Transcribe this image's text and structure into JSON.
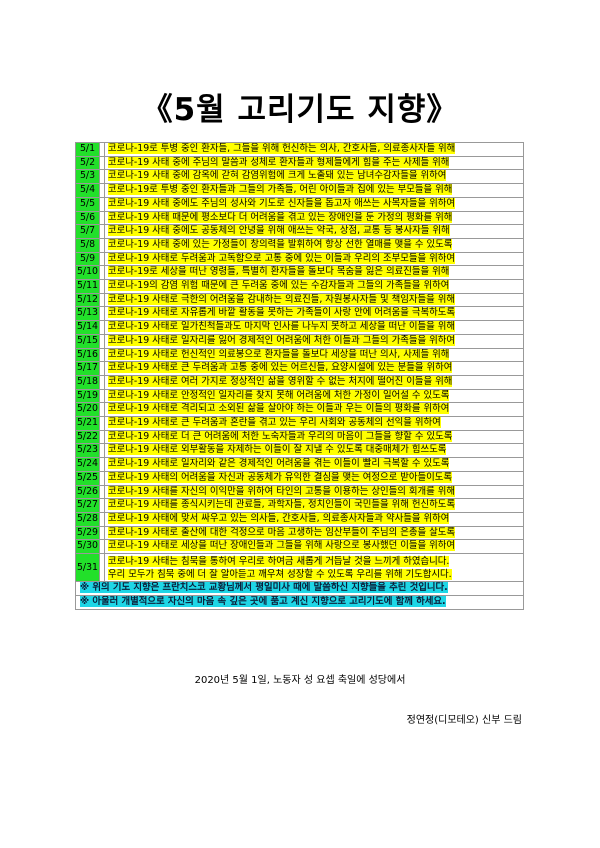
{
  "title": "《5월 고리기도 지향》",
  "colors": {
    "date_cell": "#22e02a",
    "highlight": "#ffff00",
    "note_highlight": "#1fd6e6"
  },
  "rows": [
    {
      "date": "5/1",
      "text": "코로나-19로 투병 중인 환자들, 그들을 위해 헌신하는 의사, 간호사들, 의료종사자들 위해"
    },
    {
      "date": "5/2",
      "text": "코로나-19 사태 중에 주님의 말씀과 성체로 환자들과 형제들에게 힘을 주는 사제들 위해"
    },
    {
      "date": "5/3",
      "text": "코로나-19 사태 중에 감옥에 갇혀 감염위험에 크게 노출돼 있는 남녀수감자들을 위하여"
    },
    {
      "date": "5/4",
      "text": "코로나-19로 투병 중인 환자들과 그들의 가족들, 어린 아이들과 집에 있는 부모들을 위해"
    },
    {
      "date": "5/5",
      "text": "코로나-19 사태 중에도 주님의 성사와 기도로 신자들을 돕고자 애쓰는 사목자들을 위하여"
    },
    {
      "date": "5/6",
      "text": "코로나-19 사태 때문에 평소보다 더 어려움을 겪고 있는 장애인을 둔 가정의 평화를 위해"
    },
    {
      "date": "5/7",
      "text": "코로나-19 사태 중에도 공동체의 안녕을 위해 애쓰는 약국, 상점, 교통 등 봉사자들 위해"
    },
    {
      "date": "5/8",
      "text": "코로나-19 사태 중에 있는 가정들이 창의력을 발휘하여 항상 선한 열매를 맺을 수 있도록"
    },
    {
      "date": "5/9",
      "text": "코로나-19 사태로 두려움과 고독함으로 고통 중에 있는 이들과 우리의 조부모들을 위하여"
    },
    {
      "date": "5/10",
      "text": "코로나-19로 세상을 떠난 영령들, 특별히 환자들을 돌보다 목숨을 잃은 의료진들을 위해"
    },
    {
      "date": "5/11",
      "text": "코로나-19의 감염 위험 때문에 큰 두려움 중에 있는 수감자들과 그들의 가족들을 위하여"
    },
    {
      "date": "5/12",
      "text": "코로나-19 사태로 극한의 어려움을 감내하는 의료진들, 자원봉사자들 및 책임자들을 위해"
    },
    {
      "date": "5/13",
      "text": "코로나-19 사태로 자유롭게 바깥 활동을 못하는 가족들이 사랑 안에 어려움을 극복하도록"
    },
    {
      "date": "5/14",
      "text": "코로나-19 사태로 일가친척들과도 마지막 인사를 나누지 못하고 세상을 떠난 이들을 위해"
    },
    {
      "date": "5/15",
      "text": "코로나-19 사태로 일자리를 잃어 경제적인 어려움에 처한 이들과 그들의 가족들을 위하여"
    },
    {
      "date": "5/16",
      "text": "코로나-19 사태로 헌신적인 의료봉으로 환자들을 돌보다 세상을 떠난 의사, 사제들 위해"
    },
    {
      "date": "5/17",
      "text": "코로나-19 사태로 큰 두려움과 고통 중에 있는 어르신들, 요양시설에 있는 분들을 위하여"
    },
    {
      "date": "5/18",
      "text": "코로나-19 사태로 여러 가지로 정상적인 삶을 영위할 수 없는 처지에 떨어진 이들을 위해"
    },
    {
      "date": "5/19",
      "text": "코로나-19 사태로 안정적인 일자리를 찾지 못해 어려움에 처한 가정이 일어설 수 있도록"
    },
    {
      "date": "5/20",
      "text": "코로나-19 사태로 격리되고 소외된 삶을 살아야 하는 이들과 우는 이들의 평화를 위하여"
    },
    {
      "date": "5/21",
      "text": "코로나-19 사태로 큰 두려움과 혼란을 겪고 있는 우리 사회와 공동체의 선익을 위하여"
    },
    {
      "date": "5/22",
      "text": "코로나-19 사태로 더 큰 어려움에 처한 노숙자들과 우리의 마음이 그들을 향할 수 있도록"
    },
    {
      "date": "5/23",
      "text": "코로나-19 사태로 외부활동을 자제하는 이들이 잘 지낼 수 있도록 대중매체가 힘쓰도록"
    },
    {
      "date": "5/24",
      "text": "코로나-19 사태로 일자리와 같은 경제적인 어려움을 겪는 이들이 빨리 극복할 수 있도록"
    },
    {
      "date": "5/25",
      "text": "코로나-19 사태의 어려움을 자신과 공동체가 유익한 결심을 맺는 여정으로 받아들이도록"
    },
    {
      "date": "5/26",
      "text": "코로나-19 사태를 자신의 이익만을 위하여 타인의 고통을 이용하는 상인들의 회개를 위해"
    },
    {
      "date": "5/27",
      "text": "코로나-19 사태를 종식시키는데 관료들, 과학자들, 정치인들이 국민들을 위해 헌신하도록"
    },
    {
      "date": "5/28",
      "text": "코로나-19 사태에 맞서 싸우고 있는 의사들, 간호사들, 의료종사자들과 약사들을 위하여"
    },
    {
      "date": "5/29",
      "text": "코로나-19 사태로 출산에 대한 걱정으로 마음 고생하는 임산부들이 주님의 은총을 살도록"
    },
    {
      "date": "5/30",
      "text": "코로나-19 사태로 세상을 떠난 장애인들과 그들을 위해 사랑으로 봉사했던 이들을 위하여"
    }
  ],
  "last_row": {
    "date": "5/31",
    "line1": "코로나-19 사태는 침묵을 통하여 우리로 하여금 새롭게 거듭날 것을 느끼게 하였습니다.",
    "line2": "우리 모두가 침묵 중에 더 잘 알아듣고 깨우쳐 성장할 수 있도록 우리를 위해 기도합시다."
  },
  "notes": [
    "※ 위의 기도 지향은 프란치스코 교황님께서 평일미사 때에 말씀하신 지향들을 추린 것입니다.",
    "※ 아울러 개별적으로 자신의 마음 속 깊은 곳에 품고 계신 지향으로 고리기도에 함께 하세요."
  ],
  "footer": {
    "date_line": "2020년 5월 1일, 노동자 성 요셉 축일에 성당에서",
    "signature": "정연정(디모테오) 신부 드림"
  }
}
